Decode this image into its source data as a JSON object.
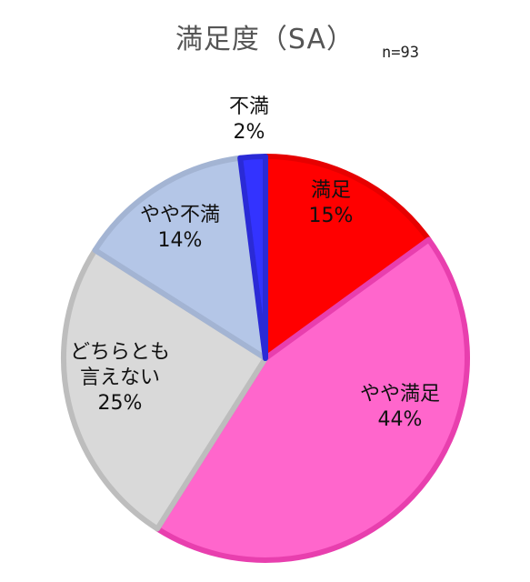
{
  "title": "満足度（SA）",
  "n_label": "n=93",
  "chart_data": {
    "type": "pie",
    "title": "満足度（SA）",
    "note": "n=93",
    "slices": [
      {
        "label": "満足",
        "value": 15,
        "display": "15%",
        "color": "#ff0000",
        "border": "#e60000"
      },
      {
        "label": "やや満足",
        "value": 44,
        "display": "44%",
        "color": "#ff66cc",
        "border": "#e83fae"
      },
      {
        "label": "どちらとも\n言えない",
        "value": 25,
        "display": "25%",
        "color": "#d9d9d9",
        "border": "#bdbdbd"
      },
      {
        "label": "やや不満",
        "value": 14,
        "display": "14%",
        "color": "#b4c6e7",
        "border": "#a3b4d3"
      },
      {
        "label": "不満",
        "value": 2,
        "display": "2%",
        "color": "#3333ff",
        "border": "#2a2ad6"
      }
    ]
  }
}
